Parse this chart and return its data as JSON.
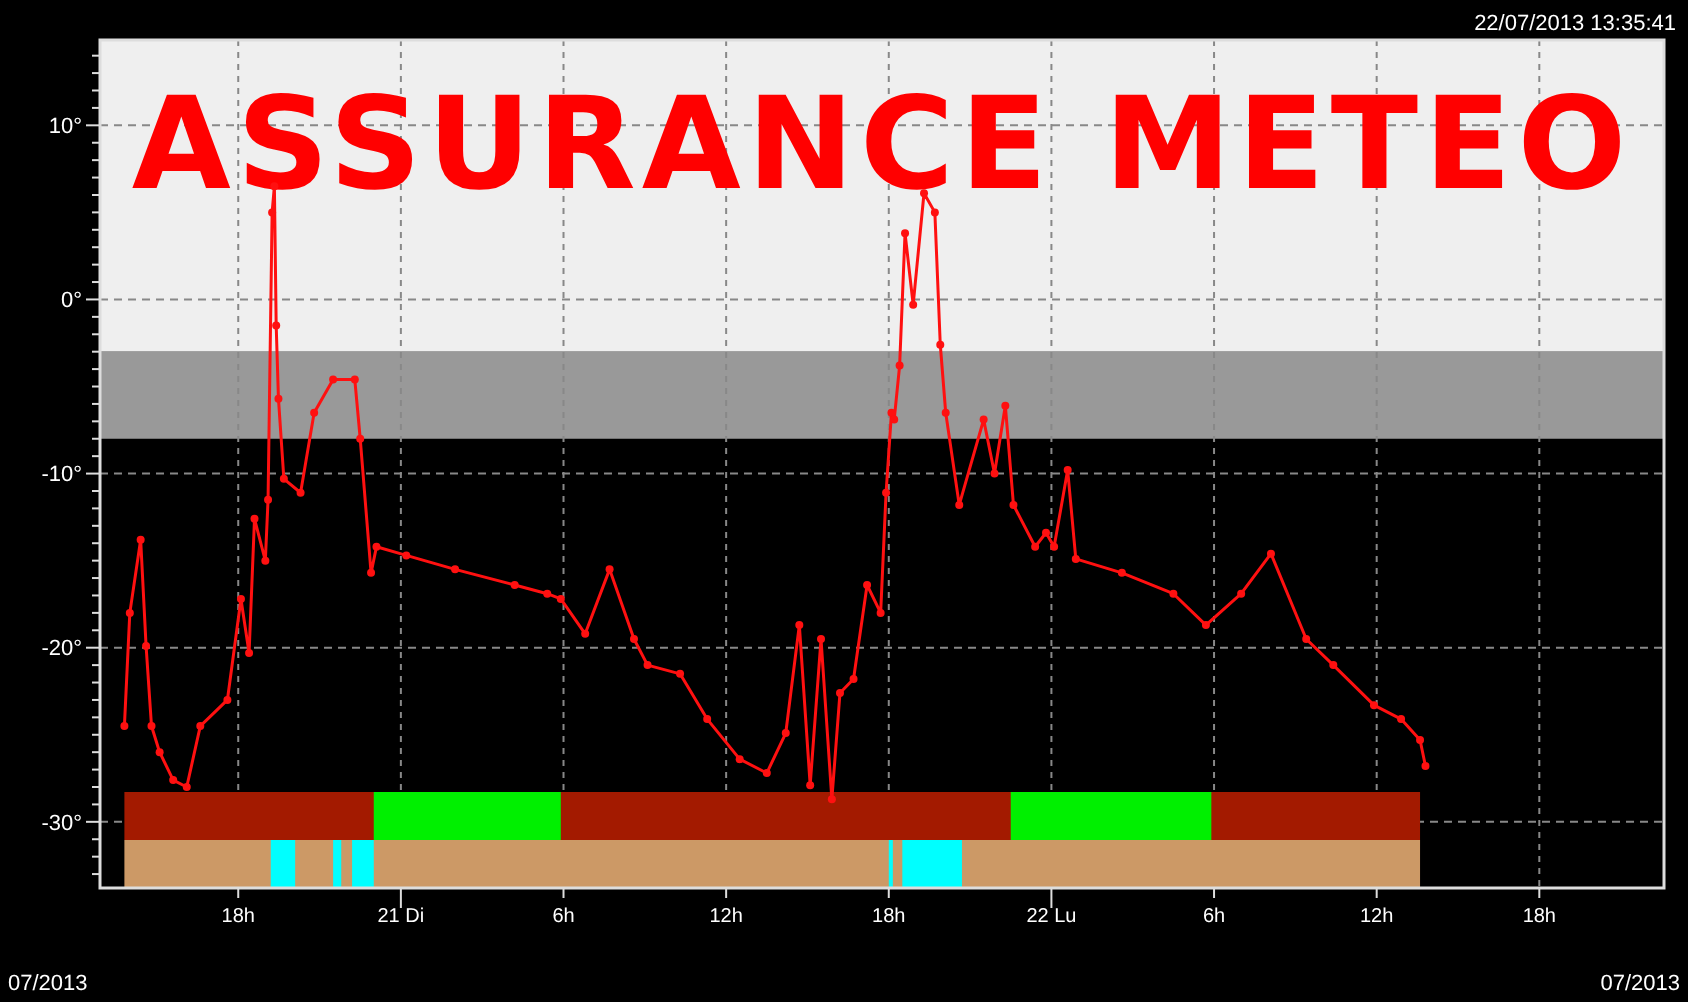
{
  "chart_data": {
    "type": "line",
    "title": "ASSURANCE METEO",
    "annotations": [
      "22/07/2013 13:35:41",
      "07/2013",
      "07/2013"
    ],
    "xlim": [
      "2013-07-20T12:54",
      "2013-07-22T22:36"
    ],
    "xticks": [
      {
        "value": "2013-07-20T18:00",
        "label": "18h"
      },
      {
        "value": "2013-07-21T00:00",
        "label": "21 Di"
      },
      {
        "value": "2013-07-21T06:00",
        "label": "6h"
      },
      {
        "value": "2013-07-21T12:00",
        "label": "12h"
      },
      {
        "value": "2013-07-21T18:00",
        "label": "18h"
      },
      {
        "value": "2013-07-22T00:00",
        "label": "22 Lu"
      },
      {
        "value": "2013-07-22T06:00",
        "label": "6h"
      },
      {
        "value": "2013-07-22T12:00",
        "label": "12h"
      },
      {
        "value": "2013-07-22T18:00",
        "label": "18h"
      }
    ],
    "ylim": [
      -33.8,
      14.9
    ],
    "yticks": [
      {
        "value": 10,
        "label": "10°"
      },
      {
        "value": 0,
        "label": "0°"
      },
      {
        "value": -10,
        "label": "-10°"
      },
      {
        "value": -20,
        "label": "-20°"
      },
      {
        "value": -30,
        "label": "-30°"
      },
      {
        "value": 14,
        "label": null
      },
      {
        "value": 13,
        "label": null
      },
      {
        "value": 12,
        "label": null
      },
      {
        "value": 11,
        "label": null
      },
      {
        "value": 9,
        "label": null
      },
      {
        "value": 8,
        "label": null
      },
      {
        "value": 7,
        "label": null
      },
      {
        "value": 6,
        "label": null
      },
      {
        "value": 5,
        "label": null
      },
      {
        "value": 4,
        "label": null
      },
      {
        "value": 3,
        "label": null
      },
      {
        "value": 2,
        "label": null
      },
      {
        "value": 1,
        "label": null
      },
      {
        "value": -1,
        "label": null
      },
      {
        "value": -2,
        "label": null
      },
      {
        "value": -3,
        "label": null
      },
      {
        "value": -4,
        "label": null
      },
      {
        "value": -5,
        "label": null
      },
      {
        "value": -6,
        "label": null
      },
      {
        "value": -7,
        "label": null
      },
      {
        "value": -8,
        "label": null
      },
      {
        "value": -9,
        "label": null
      },
      {
        "value": -11,
        "label": null
      },
      {
        "value": -12,
        "label": null
      },
      {
        "value": -13,
        "label": null
      },
      {
        "value": -14,
        "label": null
      },
      {
        "value": -15,
        "label": null
      },
      {
        "value": -16,
        "label": null
      },
      {
        "value": -17,
        "label": null
      },
      {
        "value": -18,
        "label": null
      },
      {
        "value": -19,
        "label": null
      },
      {
        "value": -21,
        "label": null
      },
      {
        "value": -22,
        "label": null
      },
      {
        "value": -23,
        "label": null
      },
      {
        "value": -24,
        "label": null
      },
      {
        "value": -25,
        "label": null
      },
      {
        "value": -26,
        "label": null
      },
      {
        "value": -27,
        "label": null
      },
      {
        "value": -28,
        "label": null
      },
      {
        "value": -29,
        "label": null
      },
      {
        "value": -31,
        "label": null
      },
      {
        "value": -32,
        "label": null
      },
      {
        "value": -33,
        "label": null
      }
    ],
    "grid": true,
    "marker": "circle",
    "line_style": "solid",
    "bands": [
      {
        "axis": "y",
        "from": -3,
        "to": 14.9,
        "color": "#efefef"
      },
      {
        "axis": "y",
        "from": -8,
        "to": -3,
        "color": "#999999"
      },
      {
        "axis": "x",
        "from": "2013-07-20T13:48",
        "to": "2013-07-22T13:36",
        "color": "#a31a00"
      },
      {
        "axis": "x",
        "from": "2013-07-20T23:00",
        "to": "2013-07-21T05:54",
        "color": "#00f000"
      },
      {
        "axis": "x",
        "from": "2013-07-21T22:30",
        "to": "2013-07-22T05:54",
        "color": "#00f000"
      },
      {
        "axis": "x",
        "from": "2013-07-20T13:48",
        "to": "2013-07-22T13:36",
        "color": "#cc9966"
      },
      {
        "axis": "x",
        "from": "2013-07-20T19:12",
        "to": "2013-07-20T20:06",
        "color": "#00ffff"
      },
      {
        "axis": "x",
        "from": "2013-07-20T21:30",
        "to": "2013-07-20T21:48",
        "color": "#00ffff"
      },
      {
        "axis": "x",
        "from": "2013-07-20T22:12",
        "to": "2013-07-20T23:00",
        "color": "#00ffff"
      },
      {
        "axis": "x",
        "from": "2013-07-21T18:00",
        "to": "2013-07-21T18:09",
        "color": "#00ffff"
      },
      {
        "axis": "x",
        "from": "2013-07-21T18:30",
        "to": "2013-07-21T20:42",
        "color": "#00ffff"
      }
    ],
    "series": [
      {
        "color": "#ff1010",
        "x": [
          "2013-07-20T13:48",
          "2013-07-20T14:00",
          "2013-07-20T14:24",
          "2013-07-20T14:36",
          "2013-07-20T14:48",
          "2013-07-20T15:06",
          "2013-07-20T15:36",
          "2013-07-20T16:06",
          "2013-07-20T16:36",
          "2013-07-20T17:36",
          "2013-07-20T18:06",
          "2013-07-20T18:24",
          "2013-07-20T18:36",
          "2013-07-20T19:00",
          "2013-07-20T19:06",
          "2013-07-20T19:15",
          "2013-07-20T19:20",
          "2013-07-20T19:24",
          "2013-07-20T19:29",
          "2013-07-20T19:41",
          "2013-07-20T20:18",
          "2013-07-20T20:48",
          "2013-07-20T21:30",
          "2013-07-20T22:18",
          "2013-07-20T22:30",
          "2013-07-20T22:54",
          "2013-07-20T23:06",
          "2013-07-21T00:12",
          "2013-07-21T02:00",
          "2013-07-21T04:12",
          "2013-07-21T05:24",
          "2013-07-21T05:54",
          "2013-07-21T06:48",
          "2013-07-21T07:42",
          "2013-07-21T08:36",
          "2013-07-21T09:06",
          "2013-07-21T10:18",
          "2013-07-21T11:18",
          "2013-07-21T12:30",
          "2013-07-21T13:30",
          "2013-07-21T14:12",
          "2013-07-21T14:42",
          "2013-07-21T15:06",
          "2013-07-21T15:30",
          "2013-07-21T15:54",
          "2013-07-21T16:12",
          "2013-07-21T16:42",
          "2013-07-21T17:12",
          "2013-07-21T17:42",
          "2013-07-21T17:54",
          "2013-07-21T18:06",
          "2013-07-21T18:12",
          "2013-07-21T18:24",
          "2013-07-21T18:36",
          "2013-07-21T18:54",
          "2013-07-21T19:18",
          "2013-07-21T19:42",
          "2013-07-21T19:54",
          "2013-07-21T20:06",
          "2013-07-21T20:36",
          "2013-07-21T21:30",
          "2013-07-21T21:54",
          "2013-07-21T22:18",
          "2013-07-21T22:36",
          "2013-07-21T23:24",
          "2013-07-21T23:48",
          "2013-07-22T00:06",
          "2013-07-22T00:36",
          "2013-07-22T00:54",
          "2013-07-22T02:36",
          "2013-07-22T04:30",
          "2013-07-22T05:42",
          "2013-07-22T07:00",
          "2013-07-22T08:06",
          "2013-07-22T09:24",
          "2013-07-22T10:24",
          "2013-07-22T11:54",
          "2013-07-22T12:54",
          "2013-07-22T13:36",
          "2013-07-22T13:48"
        ],
        "values": [
          -24.5,
          -18,
          -13.8,
          -19.9,
          -24.5,
          -26,
          -27.6,
          -28,
          -24.5,
          -23,
          -17.2,
          -20.3,
          -12.6,
          -15,
          -11.5,
          5,
          6.5,
          -1.5,
          -5.7,
          -10.3,
          -11.1,
          -6.5,
          -4.6,
          -4.6,
          -8,
          -15.7,
          -14.2,
          -14.7,
          -15.5,
          -16.4,
          -16.9,
          -17.2,
          -19.2,
          -15.5,
          -19.5,
          -21,
          -21.5,
          -24.1,
          -26.4,
          -27.2,
          -24.9,
          -18.7,
          -27.9,
          -19.5,
          -28.7,
          -22.6,
          -21.8,
          -16.4,
          -18,
          -11.1,
          -6.5,
          -6.9,
          -3.8,
          3.8,
          -0.3,
          6.1,
          5,
          -2.6,
          -6.5,
          -11.8,
          -6.9,
          -10,
          -6.1,
          -11.8,
          -14.2,
          -13.4,
          -14.2,
          -9.8,
          -14.9,
          -15.7,
          -16.9,
          -18.7,
          -16.9,
          -14.6,
          -19.5,
          -21,
          -23.3,
          -24.1,
          -25.3,
          -26.8
        ]
      }
    ]
  }
}
